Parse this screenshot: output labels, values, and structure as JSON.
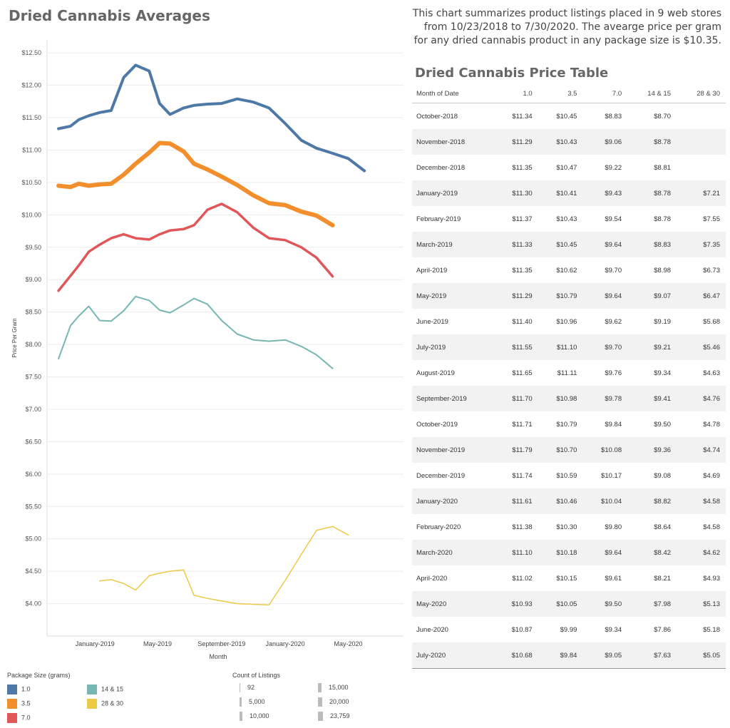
{
  "title": "Dried Cannabis Averages",
  "summary": "This chart summarizes product listings placed in 9 web stores from 10/23/2018 to 7/30/2020. The avearge price per gram for any dried cannabis product in any package size is $10.35.",
  "table": {
    "title": "Dried Cannabis Price Table",
    "headers": [
      "Month of Date",
      "1.0",
      "3.5",
      "7.0",
      "14 & 15",
      "28 & 30"
    ],
    "rows": [
      [
        "October-2018",
        "$11.34",
        "$10.45",
        "$8.83",
        "$8.70",
        ""
      ],
      [
        "November-2018",
        "$11.29",
        "$10.43",
        "$9.06",
        "$8.78",
        ""
      ],
      [
        "December-2018",
        "$11.35",
        "$10.47",
        "$9.22",
        "$8.81",
        ""
      ],
      [
        "January-2019",
        "$11.30",
        "$10.41",
        "$9.43",
        "$8.78",
        "$7.21"
      ],
      [
        "February-2019",
        "$11.37",
        "$10.43",
        "$9.54",
        "$8.78",
        "$7.55"
      ],
      [
        "March-2019",
        "$11.33",
        "$10.45",
        "$9.64",
        "$8.83",
        "$7.35"
      ],
      [
        "April-2019",
        "$11.35",
        "$10.62",
        "$9.70",
        "$8.98",
        "$6.73"
      ],
      [
        "May-2019",
        "$11.29",
        "$10.79",
        "$9.64",
        "$9.07",
        "$6.47"
      ],
      [
        "June-2019",
        "$11.40",
        "$10.96",
        "$9.62",
        "$9.19",
        "$5.68"
      ],
      [
        "July-2019",
        "$11.55",
        "$11.10",
        "$9.70",
        "$9.21",
        "$5.46"
      ],
      [
        "August-2019",
        "$11.65",
        "$11.11",
        "$9.76",
        "$9.34",
        "$4.63"
      ],
      [
        "September-2019",
        "$11.70",
        "$10.98",
        "$9.78",
        "$9.41",
        "$4.76"
      ],
      [
        "October-2019",
        "$11.71",
        "$10.79",
        "$9.84",
        "$9.50",
        "$4.78"
      ],
      [
        "November-2019",
        "$11.79",
        "$10.70",
        "$10.08",
        "$9.36",
        "$4.74"
      ],
      [
        "December-2019",
        "$11.74",
        "$10.59",
        "$10.17",
        "$9.08",
        "$4.69"
      ],
      [
        "January-2020",
        "$11.61",
        "$10.46",
        "$10.04",
        "$8.82",
        "$4.58"
      ],
      [
        "February-2020",
        "$11.38",
        "$10.30",
        "$9.80",
        "$8.64",
        "$4.58"
      ],
      [
        "March-2020",
        "$11.10",
        "$10.18",
        "$9.64",
        "$8.42",
        "$4.62"
      ],
      [
        "April-2020",
        "$11.02",
        "$10.15",
        "$9.61",
        "$8.21",
        "$4.93"
      ],
      [
        "May-2020",
        "$10.93",
        "$10.05",
        "$9.50",
        "$7.98",
        "$5.13"
      ],
      [
        "June-2020",
        "$10.87",
        "$9.99",
        "$9.34",
        "$7.86",
        "$5.18"
      ],
      [
        "July-2020",
        "$10.68",
        "$9.84",
        "$9.05",
        "$7.63",
        "$5.05"
      ]
    ]
  },
  "legend": {
    "package_title": "Package Size (grams)",
    "package_items": [
      {
        "label": "1.0",
        "color": "#4e79a7"
      },
      {
        "label": "3.5",
        "color": "#f28e2b"
      },
      {
        "label": "7.0",
        "color": "#e15759"
      },
      {
        "label": "14 & 15",
        "color": "#76b7b2"
      },
      {
        "label": "28 & 30",
        "color": "#edc948"
      }
    ],
    "count_title": "Count of Listings",
    "count_items": [
      "92",
      "5,000",
      "10,000",
      "15,000",
      "20,000",
      "23,759"
    ]
  },
  "chart_data": {
    "type": "line",
    "xlabel": "Month",
    "ylabel": "Price Per Gram",
    "ylim": [
      3.5,
      12.7
    ],
    "yticks": [
      "$4.00",
      "$4.50",
      "$5.00",
      "$5.50",
      "$6.00",
      "$6.50",
      "$7.00",
      "$7.50",
      "$8.00",
      "$8.50",
      "$9.00",
      "$9.50",
      "$10.00",
      "$10.50",
      "$11.00",
      "$11.50",
      "$12.00",
      "$12.50"
    ],
    "ytick_values": [
      4.0,
      4.5,
      5.0,
      5.5,
      6.0,
      6.5,
      7.0,
      7.5,
      8.0,
      8.5,
      9.0,
      9.5,
      10.0,
      10.5,
      11.0,
      11.5,
      12.0,
      12.5
    ],
    "x": [
      "2018-10-23",
      "2018-11-15",
      "2018-12-01",
      "2018-12-20",
      "2019-01-10",
      "2019-02-01",
      "2019-02-25",
      "2019-03-20",
      "2019-04-15",
      "2019-05-05",
      "2019-05-25",
      "2019-06-20",
      "2019-07-10",
      "2019-08-05",
      "2019-09-01",
      "2019-10-01",
      "2019-11-01",
      "2019-12-01",
      "2020-01-01",
      "2020-02-01",
      "2020-03-01",
      "2020-04-01",
      "2020-05-01",
      "2020-06-01",
      "2020-07-01",
      "2020-07-30"
    ],
    "xticks": [
      "January-2019",
      "May-2019",
      "September-2019",
      "January-2020",
      "May-2020"
    ],
    "xtick_dates": [
      "2019-01-01",
      "2019-05-01",
      "2019-09-01",
      "2020-01-01",
      "2020-05-01"
    ],
    "series": [
      {
        "name": "1.0",
        "color": "#4e79a7",
        "width": 4,
        "values": [
          11.33,
          11.37,
          11.47,
          11.53,
          11.58,
          11.61,
          12.12,
          12.31,
          12.22,
          11.72,
          11.55,
          11.65,
          11.69,
          11.71,
          11.72,
          11.79,
          11.74,
          11.65,
          11.41,
          11.15,
          11.03,
          10.95,
          10.87,
          10.68,
          null,
          null
        ]
      },
      {
        "name": "3.5",
        "color": "#f28e2b",
        "width": 6,
        "values": [
          10.45,
          10.43,
          10.48,
          10.45,
          10.47,
          10.48,
          10.62,
          10.79,
          10.96,
          11.11,
          11.1,
          10.98,
          10.79,
          10.7,
          10.59,
          10.46,
          10.3,
          10.18,
          10.15,
          10.05,
          9.99,
          9.84,
          null,
          null,
          null,
          null
        ]
      },
      {
        "name": "7.0",
        "color": "#e15759",
        "width": 3.5,
        "values": [
          8.83,
          9.06,
          9.22,
          9.43,
          9.54,
          9.64,
          9.7,
          9.64,
          9.62,
          9.7,
          9.76,
          9.78,
          9.84,
          10.08,
          10.17,
          10.04,
          9.8,
          9.64,
          9.61,
          9.5,
          9.34,
          9.05,
          null,
          null,
          null,
          null
        ]
      },
      {
        "name": "14 & 15",
        "color": "#76b7b2",
        "width": 2,
        "values": [
          7.78,
          8.29,
          8.44,
          8.59,
          8.37,
          8.36,
          8.52,
          8.74,
          8.68,
          8.53,
          8.49,
          8.61,
          8.71,
          8.62,
          8.37,
          8.16,
          8.07,
          8.05,
          8.07,
          7.97,
          7.84,
          7.63,
          null,
          null,
          null,
          null
        ]
      },
      {
        "name": "28 & 30",
        "color": "#edc948",
        "width": 1.5,
        "values": [
          null,
          null,
          null,
          null,
          4.35,
          4.37,
          4.31,
          4.21,
          4.43,
          4.47,
          4.5,
          4.52,
          4.13,
          4.08,
          4.04,
          4.0,
          3.99,
          3.98,
          4.36,
          4.76,
          5.13,
          5.19,
          5.06,
          null,
          null,
          null
        ]
      }
    ]
  }
}
